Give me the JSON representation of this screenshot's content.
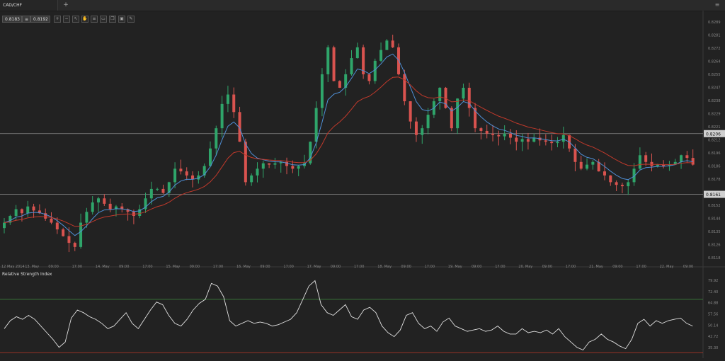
{
  "tab": {
    "title": "CAD/CHF",
    "add_label": "+"
  },
  "window": {
    "control_label": "≡"
  },
  "toolbar": {
    "bid": "0.8183",
    "separator": "≡",
    "ask": "0.8192",
    "buttons": [
      "zoom-in-icon",
      "zoom-out-icon",
      "cursor-icon",
      "hand-icon",
      "list-icon",
      "ruler-icon",
      "copy-icon",
      "image-icon",
      "brush-icon"
    ]
  },
  "price_axis": {
    "ticks": [
      "0.8289",
      "0.8281",
      "0.8272",
      "0.8264",
      "0.8255",
      "0.8247",
      "0.8238",
      "0.8229",
      "0.8221",
      "0.8212",
      "0.8196",
      "0.8186",
      "0.8178",
      "0.8169",
      "0.8152",
      "0.8144",
      "0.8135",
      "0.8126",
      "0.8118"
    ],
    "levels": [
      {
        "label": "0.8206",
        "value": 0.8206
      },
      {
        "label": "0.8161",
        "value": 0.8161
      }
    ]
  },
  "time_axis": {
    "labels": [
      "12 May 2014",
      "13. May",
      "09:00",
      "17:00",
      "14. May",
      "09:00",
      "17:00",
      "15. May",
      "09:00",
      "17:00",
      "16. May",
      "09:00",
      "17:00",
      "17. May",
      "09:00",
      "17:00",
      "18. May",
      "09:00",
      "17:00",
      "19. May",
      "09:00",
      "17:00",
      "20. May",
      "09:00",
      "17:00",
      "21. May",
      "09:00",
      "17:00",
      "22. May",
      "09:00"
    ]
  },
  "rsi": {
    "title": "Relative Strength Index",
    "ticks": [
      "79.92",
      "72.40",
      "64.88",
      "57.56",
      "50.14",
      "42.72",
      "35.30"
    ],
    "upper_level": 70,
    "lower_level": 30
  },
  "colors": {
    "bull": "#2fa56a",
    "bear": "#d9534f",
    "ema_fast": "#4f8fd6",
    "ema_slow": "#c0392b",
    "level_line": "#8a8a8a",
    "rsi_line": "#e0e0e0",
    "rsi_upper": "#3f8f3f",
    "rsi_lower": "#c0392b"
  },
  "chart_data": {
    "type": "candlestick",
    "price_range": [
      0.8113,
      0.8293
    ],
    "rsi_range": [
      28,
      88
    ],
    "close_series": [
      0.814,
      0.8145,
      0.815,
      0.8147,
      0.8152,
      0.8149,
      0.8147,
      0.8143,
      0.814,
      0.8135,
      0.813,
      0.8125,
      0.8122,
      0.814,
      0.8148,
      0.8155,
      0.8158,
      0.8154,
      0.815,
      0.8152,
      0.815,
      0.8148,
      0.8145,
      0.815,
      0.8158,
      0.8165,
      0.8165,
      0.8162,
      0.817,
      0.818,
      0.8178,
      0.8175,
      0.8172,
      0.8175,
      0.8182,
      0.8195,
      0.821,
      0.8228,
      0.8235,
      0.8222,
      0.82,
      0.817,
      0.8175,
      0.818,
      0.8184,
      0.8183,
      0.8184,
      0.8185,
      0.8182,
      0.818,
      0.8182,
      0.8184,
      0.82,
      0.8225,
      0.825,
      0.827,
      0.8245,
      0.824,
      0.825,
      0.8262,
      0.827,
      0.825,
      0.8245,
      0.826,
      0.8268,
      0.8275,
      0.827,
      0.825,
      0.823,
      0.8215,
      0.8205,
      0.821,
      0.822,
      0.823,
      0.824,
      0.8225,
      0.821,
      0.8232,
      0.824,
      0.8225,
      0.821,
      0.8208,
      0.8206,
      0.8205,
      0.8204,
      0.8206,
      0.8203,
      0.82,
      0.8202,
      0.82,
      0.8203,
      0.8201,
      0.82,
      0.8199,
      0.82,
      0.8205,
      0.8195,
      0.8185,
      0.818,
      0.8183,
      0.8185,
      0.8178,
      0.8175,
      0.817,
      0.8168,
      0.8167,
      0.817,
      0.818,
      0.819,
      0.8185,
      0.8182,
      0.8183,
      0.8182,
      0.8183,
      0.8185,
      0.819,
      0.8188,
      0.8183
    ],
    "rsi_series": [
      48,
      54,
      57,
      55,
      58,
      55,
      50,
      45,
      40,
      34,
      38,
      56,
      62,
      60,
      57,
      55,
      52,
      48,
      50,
      55,
      60,
      52,
      48,
      55,
      62,
      68,
      66,
      58,
      52,
      50,
      55,
      62,
      67,
      70,
      82,
      80,
      72,
      54,
      50,
      52,
      54,
      52,
      53,
      52,
      50,
      51,
      53,
      55,
      60,
      70,
      80,
      84,
      66,
      60,
      58,
      62,
      66,
      57,
      55,
      62,
      64,
      60,
      50,
      45,
      42,
      47,
      58,
      60,
      52,
      48,
      50,
      46,
      53,
      56,
      50,
      48,
      46,
      47,
      48,
      46,
      47,
      50,
      46,
      44,
      44,
      48,
      45,
      46,
      45,
      47,
      44,
      48,
      42,
      38,
      34,
      32,
      38,
      40,
      44,
      40,
      38,
      35,
      33,
      40,
      52,
      55,
      50,
      54,
      52,
      54,
      55,
      56,
      52,
      50
    ],
    "ema_fast_label": "",
    "ema_slow_label": ""
  }
}
